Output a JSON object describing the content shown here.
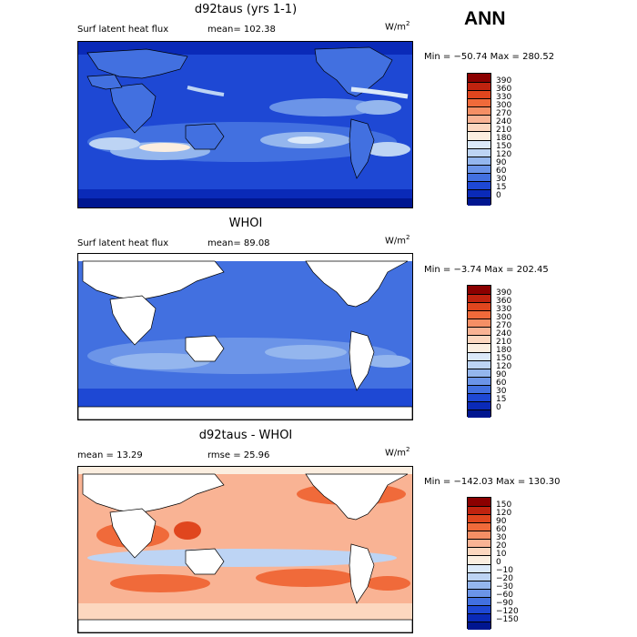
{
  "season": "ANN",
  "panels": [
    {
      "title": "d92taus (yrs 1-1)",
      "left_label": "Surf latent heat flux",
      "right_label": "mean=  102.38",
      "units": "W/m",
      "units_exp": "2",
      "minmax": "Min =  −50.74  Max =  280.52",
      "colorbar": {
        "labels": [
          "390",
          "360",
          "330",
          "300",
          "270",
          "240",
          "210",
          "180",
          "150",
          "120",
          "90",
          "60",
          "30",
          "15",
          "0"
        ],
        "colors": [
          "#8b0000",
          "#c0230f",
          "#e0461e",
          "#f06a3a",
          "#f58f65",
          "#f9b394",
          "#fcd7bf",
          "#fbeee0",
          "#dbe9f9",
          "#bdd4f4",
          "#94b6ee",
          "#6b94e8",
          "#4270e0",
          "#1e48d4",
          "#0a2ab8",
          "#001690"
        ]
      }
    },
    {
      "title": "WHOI",
      "left_label": "Surf latent heat flux",
      "right_label": "mean=   89.08",
      "units": "W/m",
      "units_exp": "2",
      "minmax": "Min =   −3.74  Max =  202.45",
      "colorbar": {
        "labels": [
          "390",
          "360",
          "330",
          "300",
          "270",
          "240",
          "210",
          "180",
          "150",
          "120",
          "90",
          "60",
          "30",
          "15",
          "0"
        ],
        "colors": [
          "#8b0000",
          "#c0230f",
          "#e0461e",
          "#f06a3a",
          "#f58f65",
          "#f9b394",
          "#fcd7bf",
          "#fbeee0",
          "#dbe9f9",
          "#bdd4f4",
          "#94b6ee",
          "#6b94e8",
          "#4270e0",
          "#1e48d4",
          "#0a2ab8",
          "#001690"
        ]
      }
    },
    {
      "title": "d92taus - WHOI",
      "left_label": "mean =   13.29",
      "right_label": "rmse =   25.96",
      "units": "W/m",
      "units_exp": "2",
      "minmax": "Min = −142.03  Max =  130.30",
      "colorbar": {
        "labels": [
          "150",
          "120",
          "90",
          "60",
          "30",
          "20",
          "10",
          "0",
          "−10",
          "−20",
          "−30",
          "−60",
          "−90",
          "−120",
          "−150"
        ],
        "colors": [
          "#8b0000",
          "#c0230f",
          "#e0461e",
          "#f06a3a",
          "#f58f65",
          "#f9b394",
          "#fcd7bf",
          "#fbeee0",
          "#dbe9f9",
          "#bdd4f4",
          "#94b6ee",
          "#6b94e8",
          "#4270e0",
          "#1e48d4",
          "#0a2ab8",
          "#001690"
        ]
      }
    }
  ]
}
